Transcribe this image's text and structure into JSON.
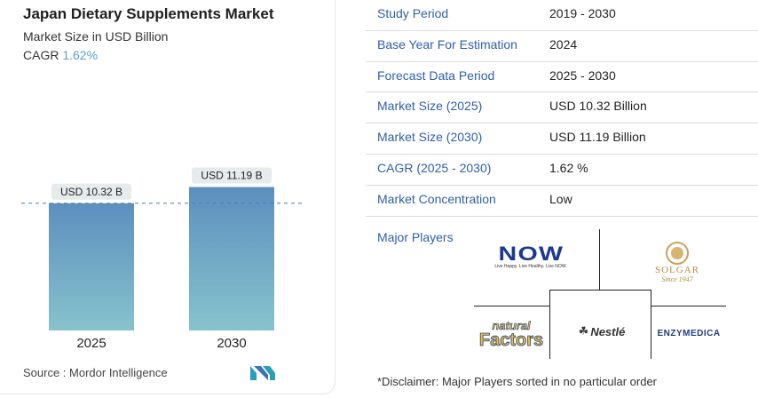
{
  "header": {
    "title": "Japan Dietary Supplements Market",
    "subtitle": "Market Size in USD Billion",
    "cagr_label": "CAGR",
    "cagr_value": "1.62%"
  },
  "chart_data": {
    "type": "bar",
    "categories": [
      "2025",
      "2030"
    ],
    "values": [
      10.32,
      11.19
    ],
    "data_labels": [
      "USD 10.32 B",
      "USD 11.19 B"
    ],
    "reference_line": "dashed at 2025 value",
    "colors": {
      "bar_top": "#5d8fbe",
      "bar_bottom": "#86c3cd",
      "label_bg": "#e6ebee",
      "dash": "#4a7fae"
    }
  },
  "footer": {
    "source": "Source : Mordor Intelligence"
  },
  "info_table": [
    {
      "key": "Study Period",
      "value": "2019 - 2030"
    },
    {
      "key": "Base Year For Estimation",
      "value": "2024"
    },
    {
      "key": "Forecast Data Period",
      "value": "2025 - 2030"
    },
    {
      "key": "Market Size (2025)",
      "value": "USD 10.32 Billion"
    },
    {
      "key": "Market Size (2030)",
      "value": "USD 11.19 Billion"
    },
    {
      "key": "CAGR (2025 - 2030)",
      "value": "1.62 %"
    },
    {
      "key": "Market Concentration",
      "value": "Low"
    }
  ],
  "players": {
    "label": "Major Players",
    "logos": [
      {
        "name": "now-logo",
        "text": "NOW",
        "tagline": "Live Happy. Live Healthy. Live NOW."
      },
      {
        "name": "solgar-logo",
        "text": "SOLGAR",
        "tagline": "Since 1947"
      },
      {
        "name": "natural-factors-logo",
        "text": "natural",
        "text2": "Factors"
      },
      {
        "name": "nestle-logo",
        "text": "Nestlé"
      },
      {
        "name": "enzymedica-logo",
        "text": "ENZYMEDICA"
      }
    ]
  },
  "disclaimer": "*Disclaimer: Major Players sorted in no particular order"
}
